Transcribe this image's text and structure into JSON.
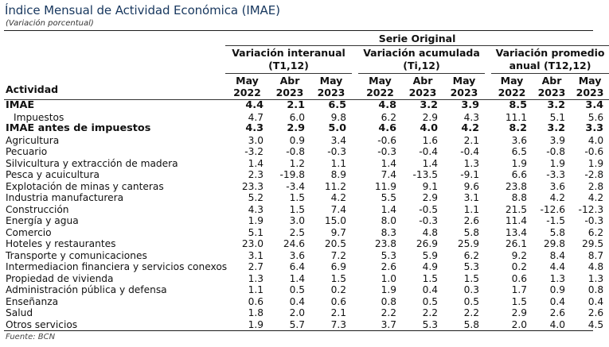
{
  "title": "Índice Mensual de Actividad Económica (IMAE)",
  "subtitle": "(Variación porcentual)",
  "source": "Fuente: BCN",
  "table": {
    "serie_label": "Serie Original",
    "activity_header": "Actividad",
    "groups": [
      {
        "line1": "Variación interanual",
        "line2": "(T1,12)"
      },
      {
        "line1": "Variación acumulada",
        "line2": "(Ti,12)"
      },
      {
        "line1": "Variación promedio",
        "line2": "anual (T12,12)"
      }
    ],
    "periods": [
      {
        "month": "May",
        "year": "2022"
      },
      {
        "month": "Abr",
        "year": "2023"
      },
      {
        "month": "May",
        "year": "2023"
      }
    ],
    "rows": [
      {
        "label": "IMAE",
        "bold": true,
        "values": [
          "4.4",
          "2.1",
          "6.5",
          "4.8",
          "3.2",
          "3.9",
          "8.5",
          "3.2",
          "3.4"
        ]
      },
      {
        "label": "Impuestos",
        "sub": true,
        "values": [
          "4.7",
          "6.0",
          "9.8",
          "6.2",
          "2.9",
          "4.3",
          "11.1",
          "5.1",
          "5.6"
        ]
      },
      {
        "label": "IMAE antes de impuestos",
        "bold": true,
        "values": [
          "4.3",
          "2.9",
          "5.0",
          "4.6",
          "4.0",
          "4.2",
          "8.2",
          "3.2",
          "3.3"
        ]
      },
      {
        "label": "Agricultura",
        "values": [
          "3.0",
          "0.9",
          "3.4",
          "-0.6",
          "1.6",
          "2.1",
          "3.6",
          "3.9",
          "4.0"
        ]
      },
      {
        "label": "Pecuario",
        "values": [
          "-3.2",
          "-0.8",
          "-0.3",
          "-0.3",
          "-0.4",
          "-0.4",
          "6.5",
          "-0.8",
          "-0.6"
        ]
      },
      {
        "label": "Silvicultura y extracción de madera",
        "values": [
          "1.4",
          "1.2",
          "1.1",
          "1.4",
          "1.4",
          "1.3",
          "1.9",
          "1.9",
          "1.9"
        ]
      },
      {
        "label": "Pesca y acuicultura",
        "values": [
          "2.3",
          "-19.8",
          "8.9",
          "7.4",
          "-13.5",
          "-9.1",
          "6.6",
          "-3.3",
          "-2.8"
        ]
      },
      {
        "label": "Explotación de minas y canteras",
        "values": [
          "23.3",
          "-3.4",
          "11.2",
          "11.9",
          "9.1",
          "9.6",
          "23.8",
          "3.6",
          "2.8"
        ]
      },
      {
        "label": "Industria manufacturera",
        "values": [
          "5.2",
          "1.5",
          "4.2",
          "5.5",
          "2.9",
          "3.1",
          "8.8",
          "4.2",
          "4.2"
        ]
      },
      {
        "label": "Construcción",
        "values": [
          "4.3",
          "1.5",
          "7.4",
          "1.4",
          "-0.5",
          "1.1",
          "21.5",
          "-12.6",
          "-12.3"
        ]
      },
      {
        "label": "Energía y agua",
        "values": [
          "1.9",
          "3.0",
          "15.0",
          "8.0",
          "-0.3",
          "2.6",
          "11.4",
          "-1.5",
          "-0.3"
        ]
      },
      {
        "label": "Comercio",
        "values": [
          "5.1",
          "2.5",
          "9.7",
          "8.3",
          "4.8",
          "5.8",
          "13.4",
          "5.8",
          "6.2"
        ]
      },
      {
        "label": "Hoteles y restaurantes",
        "values": [
          "23.0",
          "24.6",
          "20.5",
          "23.8",
          "26.9",
          "25.9",
          "26.1",
          "29.8",
          "29.5"
        ]
      },
      {
        "label": "Transporte y comunicaciones",
        "values": [
          "3.1",
          "3.6",
          "7.2",
          "5.3",
          "5.9",
          "6.2",
          "9.2",
          "8.4",
          "8.7"
        ]
      },
      {
        "label": "Intermediacion financiera y servicios conexos",
        "values": [
          "2.7",
          "6.4",
          "6.9",
          "2.6",
          "4.9",
          "5.3",
          "0.2",
          "4.4",
          "4.8"
        ]
      },
      {
        "label": "Propiedad de vivienda",
        "values": [
          "1.3",
          "1.4",
          "1.5",
          "1.0",
          "1.5",
          "1.5",
          "0.6",
          "1.3",
          "1.3"
        ]
      },
      {
        "label": "Administración pública y defensa",
        "values": [
          "1.1",
          "0.5",
          "0.2",
          "1.9",
          "0.4",
          "0.3",
          "1.7",
          "0.9",
          "0.8"
        ]
      },
      {
        "label": "Enseñanza",
        "values": [
          "0.6",
          "0.4",
          "0.6",
          "0.8",
          "0.5",
          "0.5",
          "1.5",
          "0.4",
          "0.4"
        ]
      },
      {
        "label": "Salud",
        "values": [
          "1.8",
          "2.0",
          "2.1",
          "2.2",
          "2.2",
          "2.2",
          "2.9",
          "2.6",
          "2.6"
        ]
      },
      {
        "label": "Otros servicios",
        "values": [
          "1.9",
          "5.7",
          "7.3",
          "3.7",
          "5.3",
          "5.8",
          "2.0",
          "4.0",
          "4.5"
        ]
      }
    ]
  }
}
